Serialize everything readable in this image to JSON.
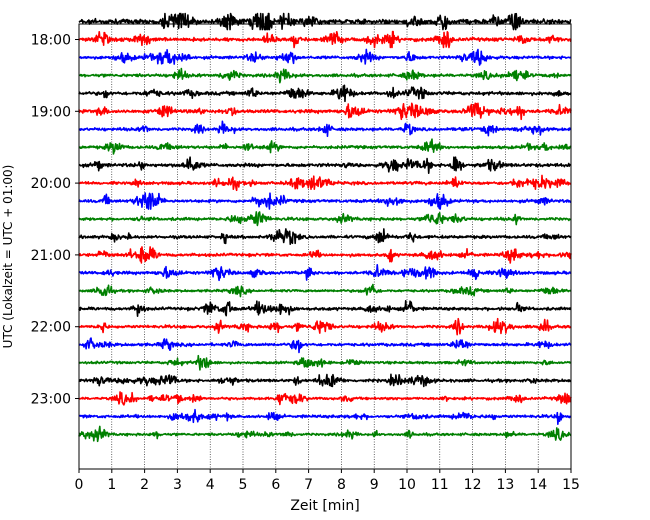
{
  "chart_data": {
    "type": "line",
    "title": "",
    "xlabel": "Zeit  [min]",
    "ylabel": "UTC (Lokalzeit = UTC + 01:00)",
    "xlim": [
      0,
      15
    ],
    "x_ticks": [
      "0",
      "1",
      "2",
      "3",
      "4",
      "5",
      "6",
      "7",
      "8",
      "9",
      "10",
      "11",
      "12",
      "13",
      "14",
      "15"
    ],
    "y_ticks": [
      "18:00",
      "19:00",
      "20:00",
      "21:00",
      "22:00",
      "23:00"
    ],
    "grid": "vertical dotted at each minute",
    "trace_colors": [
      "#000000",
      "#ff0000",
      "#0000ff",
      "#008000"
    ],
    "series": [
      {
        "start": "17:45",
        "amplitude": 1.0
      },
      {
        "start": "18:00",
        "amplitude": 0.7
      },
      {
        "start": "18:15",
        "amplitude": 0.6
      },
      {
        "start": "18:30",
        "amplitude": 0.6
      },
      {
        "start": "18:45",
        "amplitude": 0.7
      },
      {
        "start": "19:00",
        "amplitude": 0.7
      },
      {
        "start": "19:15",
        "amplitude": 0.6
      },
      {
        "start": "19:30",
        "amplitude": 0.6
      },
      {
        "start": "19:45",
        "amplitude": 0.7
      },
      {
        "start": "20:00",
        "amplitude": 0.6
      },
      {
        "start": "20:15",
        "amplitude": 0.6
      },
      {
        "start": "20:30",
        "amplitude": 0.6
      },
      {
        "start": "20:45",
        "amplitude": 0.6
      },
      {
        "start": "21:00",
        "amplitude": 0.6
      },
      {
        "start": "21:15",
        "amplitude": 0.6
      },
      {
        "start": "21:30",
        "amplitude": 0.5
      },
      {
        "start": "21:45",
        "amplitude": 0.6
      },
      {
        "start": "22:00",
        "amplitude": 0.6
      },
      {
        "start": "22:15",
        "amplitude": 0.6
      },
      {
        "start": "22:30",
        "amplitude": 0.5
      },
      {
        "start": "22:45",
        "amplitude": 0.6
      },
      {
        "start": "23:00",
        "amplitude": 0.5
      },
      {
        "start": "23:15",
        "amplitude": 0.6
      },
      {
        "start": "23:30",
        "amplitude": 0.5
      }
    ]
  }
}
